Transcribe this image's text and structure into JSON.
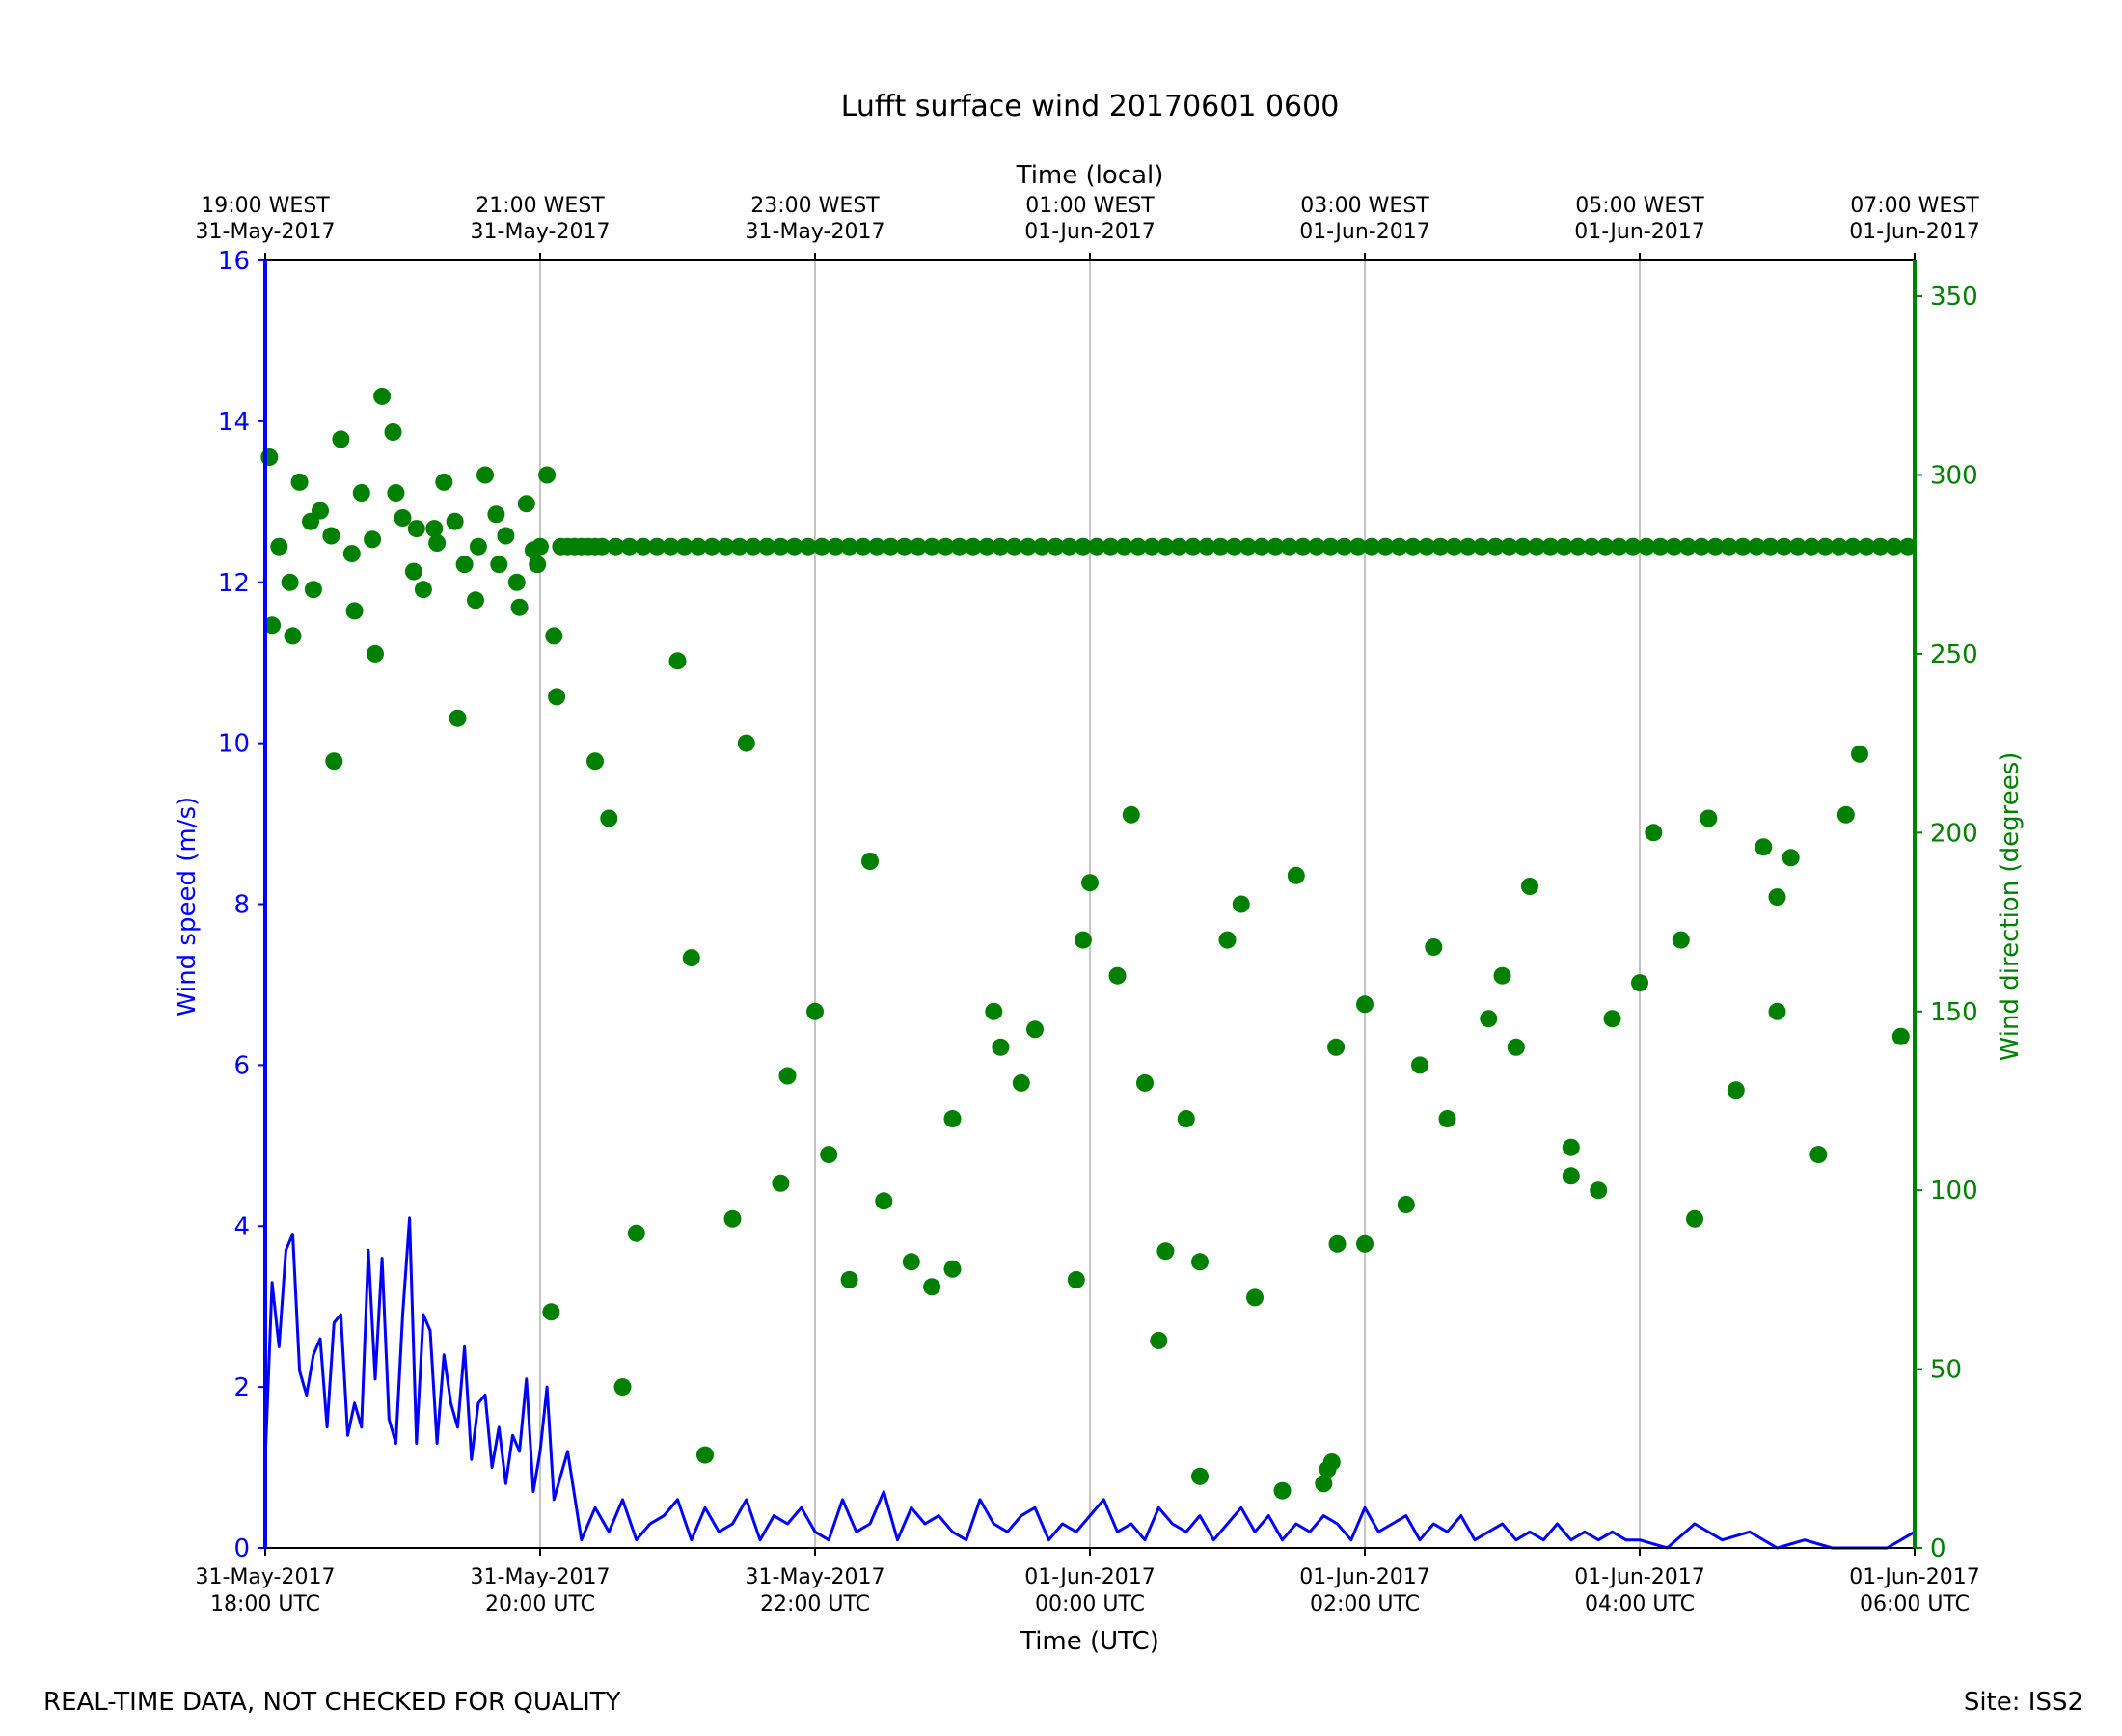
{
  "chart_data": {
    "type": "line+scatter",
    "title": "Lufft surface wind 20170601 0600",
    "top_axis_label": "Time (local)",
    "bottom_axis_label": "Time (UTC)",
    "ylabel_left": "Wind speed (m/s)",
    "ylabel_right": "Wind direction (degrees)",
    "xlim_utc": [
      "2017-05-31 18:00",
      "2017-06-01 06:00"
    ],
    "ylim_left": [
      0,
      16
    ],
    "ylim_right": [
      0,
      360
    ],
    "grid": "vertical lines at x ticks",
    "colors": {
      "speed": "#0000ff",
      "direction": "#008000",
      "grid": "#b0b0b0",
      "frame": "#000000"
    },
    "bottom_ticks": [
      {
        "l1": "31-May-2017",
        "l2": "18:00 UTC"
      },
      {
        "l1": "31-May-2017",
        "l2": "20:00 UTC"
      },
      {
        "l1": "31-May-2017",
        "l2": "22:00 UTC"
      },
      {
        "l1": "01-Jun-2017",
        "l2": "00:00 UTC"
      },
      {
        "l1": "01-Jun-2017",
        "l2": "02:00 UTC"
      },
      {
        "l1": "01-Jun-2017",
        "l2": "04:00 UTC"
      },
      {
        "l1": "01-Jun-2017",
        "l2": "06:00 UTC"
      }
    ],
    "top_ticks": [
      {
        "l1": "19:00 WEST",
        "l2": "31-May-2017"
      },
      {
        "l1": "21:00 WEST",
        "l2": "31-May-2017"
      },
      {
        "l1": "23:00 WEST",
        "l2": "31-May-2017"
      },
      {
        "l1": "01:00 WEST",
        "l2": "01-Jun-2017"
      },
      {
        "l1": "03:00 WEST",
        "l2": "01-Jun-2017"
      },
      {
        "l1": "05:00 WEST",
        "l2": "01-Jun-2017"
      },
      {
        "l1": "07:00 WEST",
        "l2": "01-Jun-2017"
      }
    ],
    "left_ticks": [
      "0",
      "2",
      "4",
      "6",
      "8",
      "10",
      "12",
      "14",
      "16"
    ],
    "right_ticks": [
      "0",
      "50",
      "100",
      "150",
      "200",
      "250",
      "300",
      "350"
    ],
    "series": [
      {
        "name": "Wind speed (m/s)",
        "axis": "left",
        "style": "line",
        "x_hours_utc_since_1800": [
          0.0,
          0.05,
          0.1,
          0.15,
          0.2,
          0.25,
          0.3,
          0.35,
          0.4,
          0.45,
          0.5,
          0.55,
          0.6,
          0.65,
          0.7,
          0.75,
          0.8,
          0.85,
          0.9,
          0.95,
          1.0,
          1.05,
          1.1,
          1.15,
          1.2,
          1.25,
          1.3,
          1.35,
          1.4,
          1.45,
          1.5,
          1.55,
          1.6,
          1.65,
          1.7,
          1.75,
          1.8,
          1.85,
          1.9,
          1.95,
          2.0,
          2.05,
          2.1,
          2.2,
          2.3,
          2.4,
          2.5,
          2.6,
          2.7,
          2.8,
          2.9,
          3.0,
          3.1,
          3.2,
          3.3,
          3.4,
          3.5,
          3.6,
          3.7,
          3.8,
          3.9,
          4.0,
          4.1,
          4.2,
          4.3,
          4.4,
          4.5,
          4.6,
          4.7,
          4.8,
          4.9,
          5.0,
          5.1,
          5.2,
          5.3,
          5.4,
          5.5,
          5.6,
          5.7,
          5.8,
          5.9,
          6.0,
          6.1,
          6.2,
          6.3,
          6.4,
          6.5,
          6.6,
          6.7,
          6.8,
          6.9,
          7.0,
          7.1,
          7.2,
          7.3,
          7.4,
          7.5,
          7.6,
          7.7,
          7.8,
          7.9,
          8.0,
          8.1,
          8.2,
          8.3,
          8.4,
          8.5,
          8.6,
          8.7,
          8.8,
          8.9,
          9.0,
          9.1,
          9.2,
          9.3,
          9.4,
          9.5,
          9.6,
          9.7,
          9.8,
          9.9,
          10.0,
          10.2,
          10.4,
          10.6,
          10.8,
          11.0,
          11.2,
          11.4,
          11.6,
          11.8,
          11.9,
          12.0
        ],
        "values": [
          1.1,
          3.3,
          2.5,
          3.7,
          3.9,
          2.2,
          1.9,
          2.4,
          2.6,
          1.5,
          2.8,
          2.9,
          1.4,
          1.8,
          1.5,
          3.7,
          2.1,
          3.6,
          1.6,
          1.3,
          2.9,
          4.1,
          1.3,
          2.9,
          2.7,
          1.3,
          2.4,
          1.8,
          1.5,
          2.5,
          1.1,
          1.8,
          1.9,
          1.0,
          1.5,
          0.8,
          1.4,
          1.2,
          2.1,
          0.7,
          1.2,
          2.0,
          0.6,
          1.2,
          0.1,
          0.5,
          0.2,
          0.6,
          0.1,
          0.3,
          0.4,
          0.6,
          0.1,
          0.5,
          0.2,
          0.3,
          0.6,
          0.1,
          0.4,
          0.3,
          0.5,
          0.2,
          0.1,
          0.6,
          0.2,
          0.3,
          0.7,
          0.1,
          0.5,
          0.3,
          0.4,
          0.2,
          0.1,
          0.6,
          0.3,
          0.2,
          0.4,
          0.5,
          0.1,
          0.3,
          0.2,
          0.4,
          0.6,
          0.2,
          0.3,
          0.1,
          0.5,
          0.3,
          0.2,
          0.4,
          0.1,
          0.3,
          0.5,
          0.2,
          0.4,
          0.1,
          0.3,
          0.2,
          0.4,
          0.3,
          0.1,
          0.5,
          0.2,
          0.3,
          0.4,
          0.1,
          0.3,
          0.2,
          0.4,
          0.1,
          0.2,
          0.3,
          0.1,
          0.2,
          0.1,
          0.3,
          0.1,
          0.2,
          0.1,
          0.2,
          0.1,
          0.1,
          0.0,
          0.3,
          0.1,
          0.2,
          0.0,
          0.1,
          0.0,
          0.0,
          0.0,
          0.1,
          0.2,
          0.0
        ]
      },
      {
        "name": "Wind direction (degrees)",
        "axis": "right",
        "style": "scatter",
        "x_hours_utc_since_1800": [
          0.03,
          0.1,
          0.18,
          0.25,
          0.33,
          0.4,
          0.48,
          0.55,
          0.63,
          0.7,
          0.78,
          0.85,
          0.93,
          1.0,
          1.08,
          1.15,
          1.23,
          1.3,
          1.38,
          1.45,
          1.53,
          1.6,
          1.68,
          1.75,
          1.83,
          1.9,
          1.98,
          0.05,
          0.2,
          0.35,
          0.5,
          0.65,
          0.8,
          0.95,
          1.1,
          1.25,
          1.4,
          1.55,
          1.7,
          1.85,
          1.95,
          2.05,
          2.1,
          2.15,
          2.2,
          2.25,
          2.3,
          2.35,
          2.4,
          2.45,
          2.55,
          2.65,
          2.75,
          2.85,
          2.95,
          3.05,
          3.15,
          3.25,
          3.35,
          3.45,
          3.55,
          3.65,
          3.75,
          3.85,
          3.95,
          4.05,
          4.15,
          4.25,
          4.35,
          4.45,
          4.55,
          4.65,
          4.75,
          4.85,
          4.95,
          5.05,
          5.15,
          5.25,
          5.35,
          5.45,
          5.55,
          5.65,
          5.75,
          5.85,
          5.95,
          6.05,
          6.15,
          6.25,
          6.35,
          6.45,
          6.55,
          6.65,
          6.75,
          6.85,
          6.95,
          7.05,
          7.15,
          7.25,
          7.35,
          7.45,
          7.55,
          7.65,
          7.75,
          7.85,
          7.95,
          8.05,
          8.15,
          8.25,
          8.35,
          8.45,
          8.55,
          8.65,
          8.75,
          8.85,
          8.95,
          9.05,
          9.15,
          9.25,
          9.35,
          9.45,
          9.55,
          9.65,
          9.75,
          9.85,
          9.95,
          10.05,
          10.15,
          10.25,
          10.35,
          10.45,
          10.55,
          10.65,
          10.75,
          10.85,
          10.95,
          11.05,
          11.15,
          11.25,
          11.35,
          11.45,
          11.55,
          11.65,
          11.75,
          11.85,
          11.95,
          2.0,
          2.5,
          3.0,
          3.5,
          4.0,
          4.5,
          5.0,
          5.5,
          6.0,
          6.3,
          6.55,
          6.7,
          7.0,
          7.5,
          8.0,
          8.5,
          9.0,
          9.5,
          10.0,
          10.5,
          11.0,
          11.5,
          2.12,
          2.4,
          2.7,
          3.1,
          3.4,
          3.8,
          4.1,
          4.4,
          4.7,
          5.0,
          5.3,
          5.6,
          5.9,
          6.2,
          6.5,
          6.8,
          7.1,
          7.4,
          7.7,
          7.73,
          7.76,
          7.79,
          8.0,
          8.3,
          8.6,
          8.9,
          9.2,
          9.5,
          9.8,
          10.1,
          10.4,
          10.7,
          11.0,
          11.3,
          11.6,
          11.9,
          2.08,
          2.6,
          3.2,
          3.75,
          4.25,
          4.85,
          5.35,
          5.95,
          6.4,
          6.8,
          7.2,
          7.8,
          8.4,
          9.1,
          9.7,
          10.3,
          10.9,
          11.1
        ],
        "values": [
          305,
          280,
          270,
          298,
          287,
          290,
          283,
          310,
          278,
          295,
          282,
          322,
          312,
          288,
          273,
          268,
          285,
          298,
          287,
          275,
          265,
          300,
          289,
          283,
          270,
          292,
          275,
          258,
          255,
          268,
          220,
          262,
          250,
          295,
          285,
          281,
          232,
          280,
          275,
          263,
          279,
          300,
          255,
          280,
          280,
          280,
          280,
          280,
          280,
          280,
          280,
          280,
          280,
          280,
          280,
          280,
          280,
          280,
          280,
          280,
          280,
          280,
          280,
          280,
          280,
          280,
          280,
          280,
          280,
          280,
          280,
          280,
          280,
          280,
          280,
          280,
          280,
          280,
          280,
          280,
          280,
          280,
          280,
          280,
          280,
          280,
          280,
          280,
          280,
          280,
          280,
          280,
          280,
          280,
          280,
          280,
          280,
          280,
          280,
          280,
          280,
          280,
          280,
          280,
          280,
          280,
          280,
          280,
          280,
          280,
          280,
          280,
          280,
          280,
          280,
          280,
          280,
          280,
          280,
          280,
          280,
          280,
          280,
          280,
          280,
          280,
          280,
          280,
          280,
          280,
          280,
          280,
          280,
          280,
          280,
          280,
          280,
          280,
          280,
          280,
          280,
          280,
          280,
          280,
          280,
          280,
          204,
          248,
          225,
          150,
          97,
          78,
          130,
          186,
          205,
          83,
          120,
          170,
          188,
          85,
          168,
          160,
          112,
          158,
          204,
          150,
          205,
          238,
          220,
          88,
          165,
          92,
          132,
          110,
          192,
          80,
          120,
          150,
          145,
          75,
          160,
          58,
          20,
          180,
          16,
          18,
          22,
          24,
          140,
          152,
          96,
          120,
          148,
          185,
          104,
          148,
          200,
          92,
          128,
          182,
          110,
          222,
          143,
          66,
          45,
          26,
          102,
          75,
          73,
          140,
          170,
          130,
          80,
          70,
          85,
          135,
          140,
          100,
          170,
          196,
          193,
          130,
          118,
          96,
          102,
          223
        ]
      }
    ]
  },
  "footer": {
    "left": "REAL-TIME DATA, NOT CHECKED FOR QUALITY",
    "right": "Site: ISS2"
  }
}
